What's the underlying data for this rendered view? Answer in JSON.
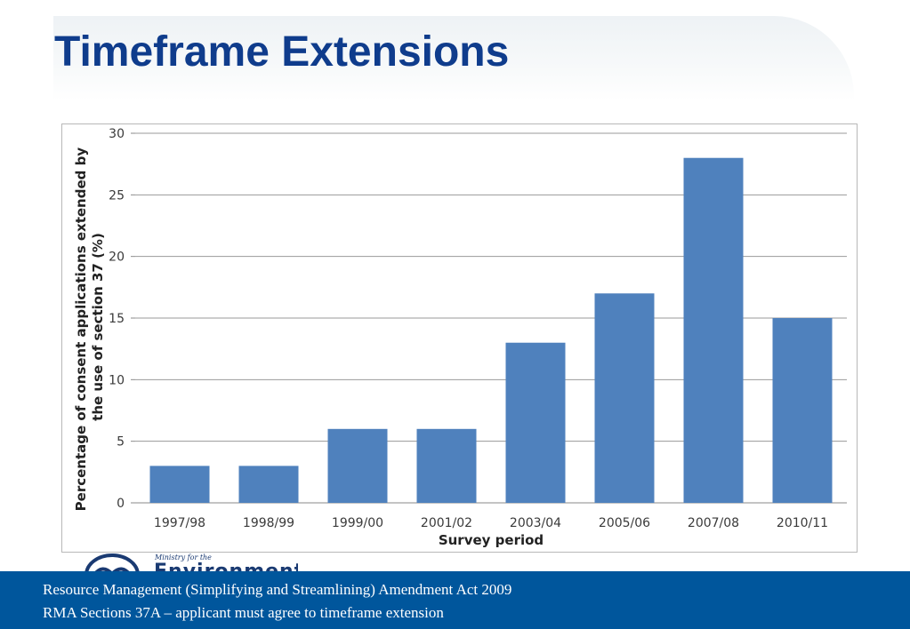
{
  "slide": {
    "title": "Timeframe Extensions"
  },
  "logo": {
    "small_text": "Ministry for the",
    "big_text": "Environment"
  },
  "footer": {
    "line1": "Resource Management (Simplifying and Streamlining) Amendment Act 2009",
    "line2": "RMA Sections 37A – applicant must agree to timeframe extension"
  },
  "colors": {
    "title": "#0f3c8c",
    "bar": "#4f81bd",
    "footer": "#00569c"
  },
  "chart_data": {
    "type": "bar",
    "categories": [
      "1997/98",
      "1998/99",
      "1999/00",
      "2001/02",
      "2003/04",
      "2005/06",
      "2007/08",
      "2010/11"
    ],
    "values": [
      3,
      3,
      6,
      6,
      13,
      17,
      28,
      15
    ],
    "xlabel": "Survey period",
    "ylabel_lines": [
      "Percentage of consent applications  extended by",
      "the use of section 37 (%)"
    ],
    "ylim": [
      0,
      30
    ],
    "yticks": [
      0,
      5,
      10,
      15,
      20,
      25,
      30
    ],
    "grid": true,
    "legend": "none"
  }
}
